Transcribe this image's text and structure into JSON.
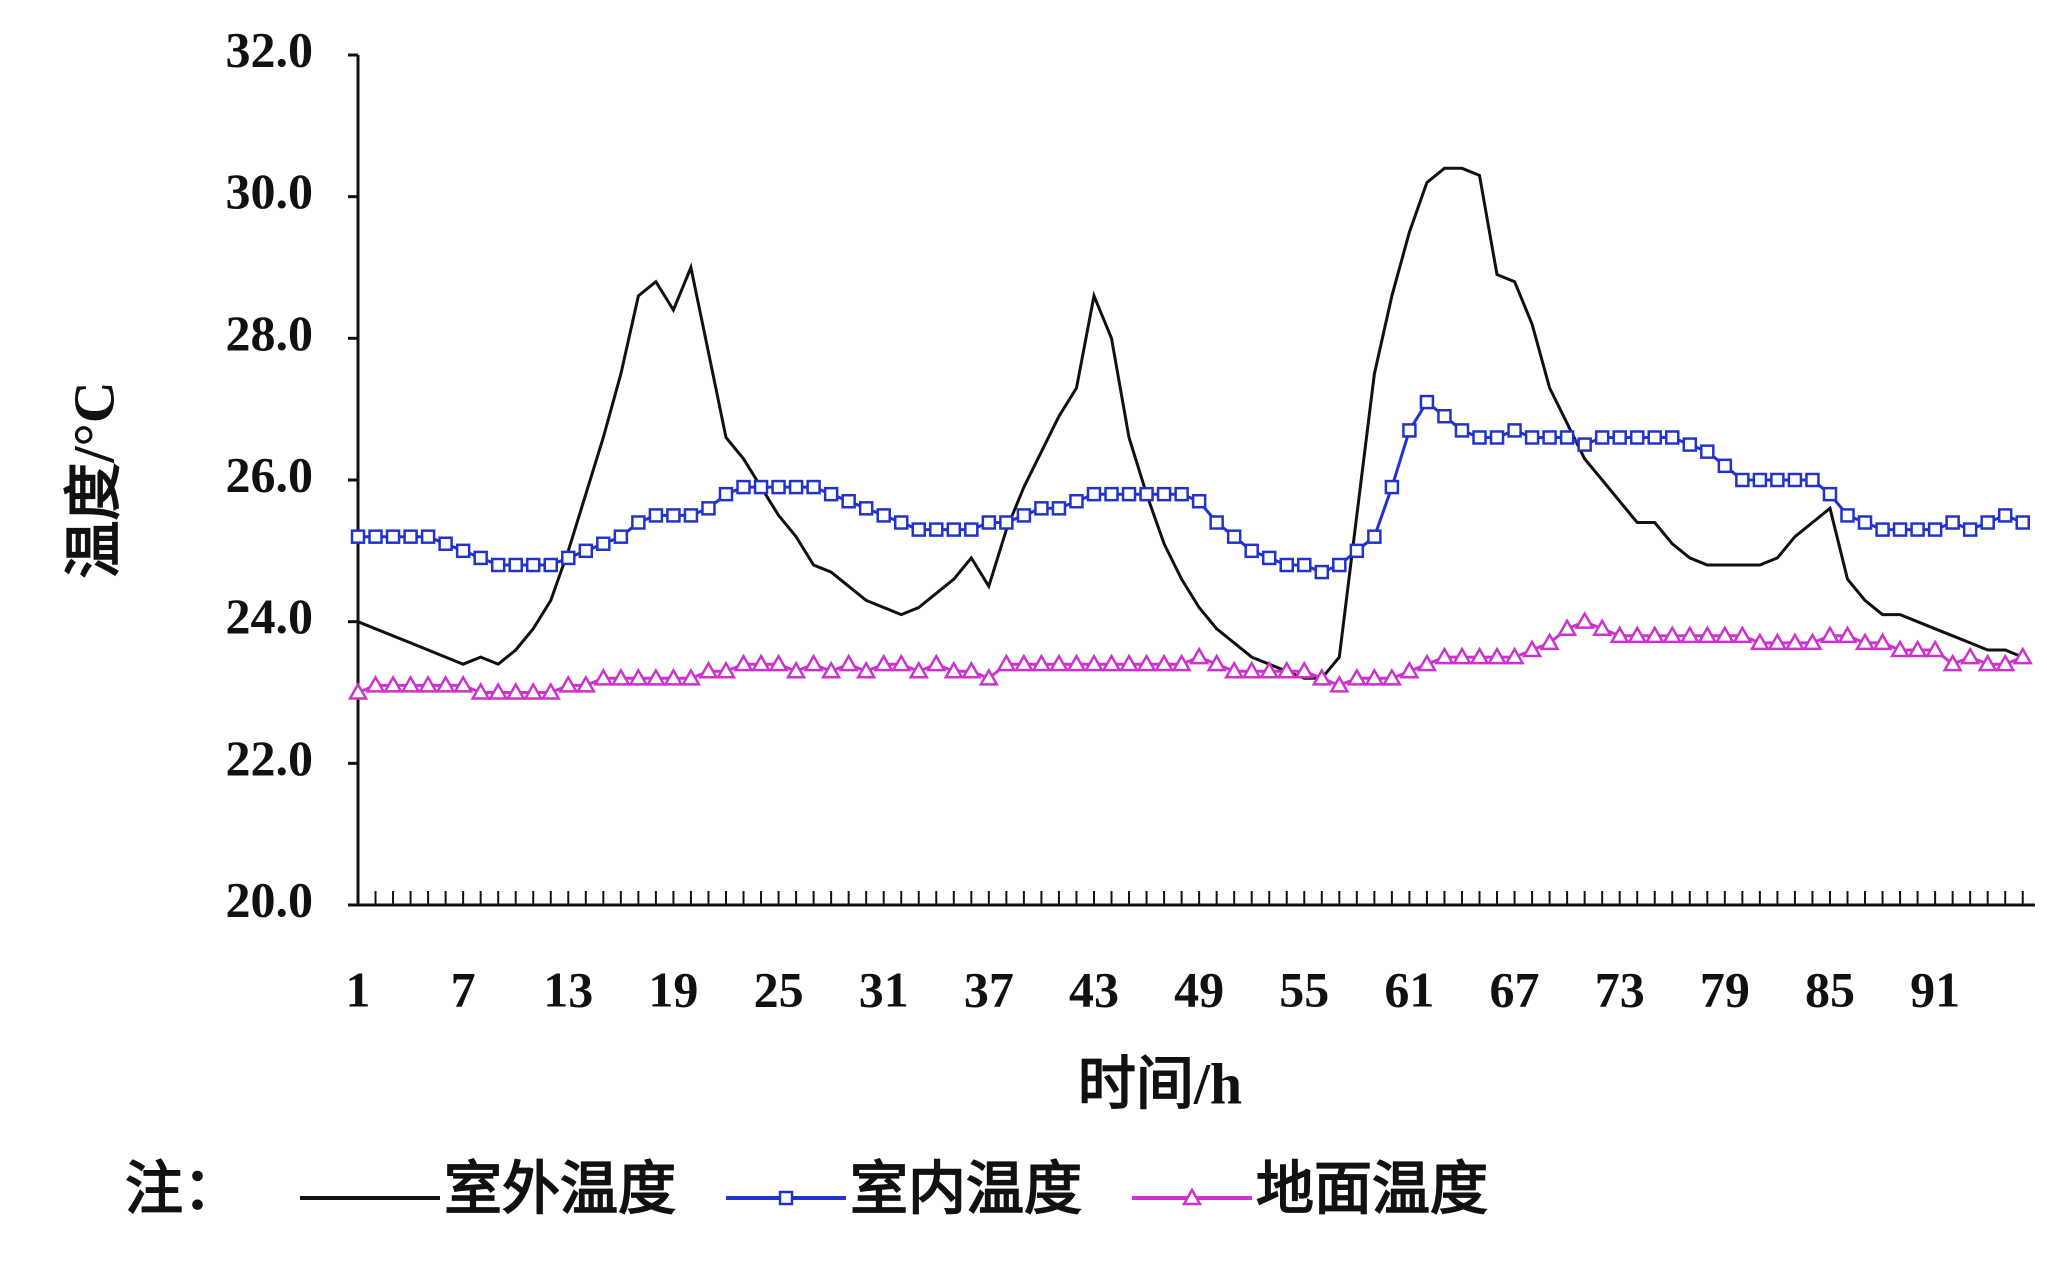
{
  "chart_data": {
    "type": "line",
    "xlabel": "时间/h",
    "ylabel": "温度/°C",
    "legend_title": "注：",
    "x": [
      1,
      2,
      3,
      4,
      5,
      6,
      7,
      8,
      9,
      10,
      11,
      12,
      13,
      14,
      15,
      16,
      17,
      18,
      19,
      20,
      21,
      22,
      23,
      24,
      25,
      26,
      27,
      28,
      29,
      30,
      31,
      32,
      33,
      34,
      35,
      36,
      37,
      38,
      39,
      40,
      41,
      42,
      43,
      44,
      45,
      46,
      47,
      48,
      49,
      50,
      51,
      52,
      53,
      54,
      55,
      56,
      57,
      58,
      59,
      60,
      61,
      62,
      63,
      64,
      65,
      66,
      67,
      68,
      69,
      70,
      71,
      72,
      73,
      74,
      75,
      76,
      77,
      78,
      79,
      80,
      81,
      82,
      83,
      84,
      85,
      86,
      87,
      88,
      89,
      90,
      91,
      92,
      93,
      94,
      95,
      96
    ],
    "xlim": [
      1,
      96.7
    ],
    "xticks": [
      1,
      7,
      13,
      19,
      25,
      31,
      37,
      43,
      49,
      55,
      61,
      67,
      73,
      79,
      85,
      91
    ],
    "ylim": [
      20,
      32
    ],
    "yticks": [
      {
        "value": 20,
        "label": "20.0"
      },
      {
        "value": 22,
        "label": "22.0"
      },
      {
        "value": 24,
        "label": "24.0"
      },
      {
        "value": 26,
        "label": "26.0"
      },
      {
        "value": 28,
        "label": "28.0"
      },
      {
        "value": 30,
        "label": "30.0"
      },
      {
        "value": 32,
        "label": "32.0"
      }
    ],
    "series": [
      {
        "name": "室外温度",
        "color": "#111111",
        "marker": "none",
        "values": [
          24.0,
          23.9,
          23.8,
          23.7,
          23.6,
          23.5,
          23.4,
          23.5,
          23.4,
          23.6,
          23.9,
          24.3,
          25.0,
          25.8,
          26.6,
          27.5,
          28.6,
          28.8,
          28.4,
          29.0,
          27.8,
          26.6,
          26.3,
          25.9,
          25.5,
          25.2,
          24.8,
          24.7,
          24.5,
          24.3,
          24.2,
          24.1,
          24.2,
          24.4,
          24.6,
          24.9,
          24.5,
          25.3,
          25.9,
          26.4,
          26.9,
          27.3,
          28.6,
          28.0,
          26.6,
          25.8,
          25.1,
          24.6,
          24.2,
          23.9,
          23.7,
          23.5,
          23.4,
          23.3,
          23.2,
          23.2,
          23.5,
          25.5,
          27.5,
          28.6,
          29.5,
          30.2,
          30.4,
          30.4,
          30.3,
          28.9,
          28.8,
          28.2,
          27.3,
          26.8,
          26.3,
          26.0,
          25.7,
          25.4,
          25.4,
          25.1,
          24.9,
          24.8,
          24.8,
          24.8,
          24.8,
          24.9,
          25.2,
          25.4,
          25.6,
          24.6,
          24.3,
          24.1,
          24.1,
          24.0,
          23.9,
          23.8,
          23.7,
          23.6,
          23.6,
          23.5
        ]
      },
      {
        "name": "室内温度",
        "color": "#2233cc",
        "marker": "square",
        "values": [
          25.2,
          25.2,
          25.2,
          25.2,
          25.2,
          25.1,
          25.0,
          24.9,
          24.8,
          24.8,
          24.8,
          24.8,
          24.9,
          25.0,
          25.1,
          25.2,
          25.4,
          25.5,
          25.5,
          25.5,
          25.6,
          25.8,
          25.9,
          25.9,
          25.9,
          25.9,
          25.9,
          25.8,
          25.7,
          25.6,
          25.5,
          25.4,
          25.3,
          25.3,
          25.3,
          25.3,
          25.4,
          25.4,
          25.5,
          25.6,
          25.6,
          25.7,
          25.8,
          25.8,
          25.8,
          25.8,
          25.8,
          25.8,
          25.7,
          25.4,
          25.2,
          25.0,
          24.9,
          24.8,
          24.8,
          24.7,
          24.8,
          25.0,
          25.2,
          25.9,
          26.7,
          27.1,
          26.9,
          26.7,
          26.6,
          26.6,
          26.7,
          26.6,
          26.6,
          26.6,
          26.5,
          26.6,
          26.6,
          26.6,
          26.6,
          26.6,
          26.5,
          26.4,
          26.2,
          26.0,
          26.0,
          26.0,
          26.0,
          26.0,
          25.8,
          25.5,
          25.4,
          25.3,
          25.3,
          25.3,
          25.3,
          25.4,
          25.3,
          25.4,
          25.5,
          25.4
        ]
      },
      {
        "name": "地面温度",
        "color": "#cc33cc",
        "marker": "triangle",
        "values": [
          23.0,
          23.1,
          23.1,
          23.1,
          23.1,
          23.1,
          23.1,
          23.0,
          23.0,
          23.0,
          23.0,
          23.0,
          23.1,
          23.1,
          23.2,
          23.2,
          23.2,
          23.2,
          23.2,
          23.2,
          23.3,
          23.3,
          23.4,
          23.4,
          23.4,
          23.3,
          23.4,
          23.3,
          23.4,
          23.3,
          23.4,
          23.4,
          23.3,
          23.4,
          23.3,
          23.3,
          23.2,
          23.4,
          23.4,
          23.4,
          23.4,
          23.4,
          23.4,
          23.4,
          23.4,
          23.4,
          23.4,
          23.4,
          23.5,
          23.4,
          23.3,
          23.3,
          23.3,
          23.3,
          23.3,
          23.2,
          23.1,
          23.2,
          23.2,
          23.2,
          23.3,
          23.4,
          23.5,
          23.5,
          23.5,
          23.5,
          23.5,
          23.6,
          23.7,
          23.9,
          24.0,
          23.9,
          23.8,
          23.8,
          23.8,
          23.8,
          23.8,
          23.8,
          23.8,
          23.8,
          23.7,
          23.7,
          23.7,
          23.7,
          23.8,
          23.8,
          23.7,
          23.7,
          23.6,
          23.6,
          23.6,
          23.4,
          23.5,
          23.4,
          23.4,
          23.5
        ]
      }
    ]
  }
}
